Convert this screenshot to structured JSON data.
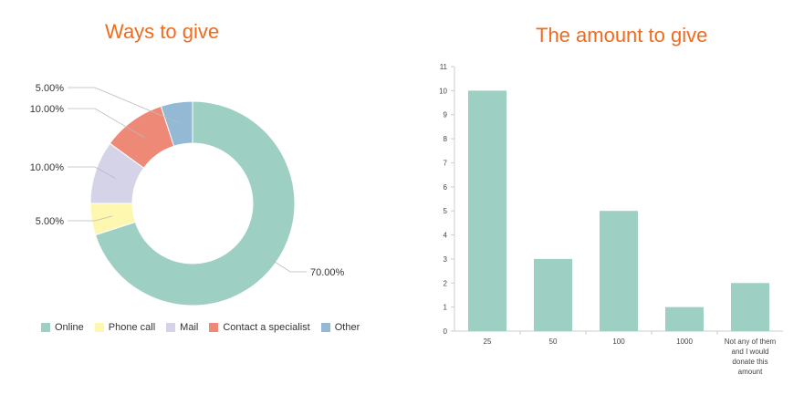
{
  "chart_data": [
    {
      "type": "pie",
      "title": "Ways to give",
      "donut": true,
      "legend_position": "bottom",
      "series": [
        {
          "name": "Online",
          "value": 70,
          "label": "70.00%",
          "color": "#9ecfc3"
        },
        {
          "name": "Phone call",
          "value": 5,
          "label": "5.00%",
          "color": "#fdf7b0"
        },
        {
          "name": "Mail",
          "value": 10,
          "label": "10.00%",
          "color": "#d5d3e8"
        },
        {
          "name": "Contact a specialist",
          "value": 10,
          "label": "10.00%",
          "color": "#ee8877"
        },
        {
          "name": "Other",
          "value": 5,
          "label": "5.00%",
          "color": "#93b9d5"
        }
      ]
    },
    {
      "type": "bar",
      "title": "The amount to give",
      "categories": [
        "25",
        "50",
        "100",
        "1000",
        "Not any of them and I would donate this amount"
      ],
      "category_lines": [
        [
          "25"
        ],
        [
          "50"
        ],
        [
          "100"
        ],
        [
          "1000"
        ],
        [
          "Not any of them",
          "and I would",
          "donate this",
          "amount"
        ]
      ],
      "values": [
        10,
        3,
        5,
        1,
        2
      ],
      "ylim": [
        0,
        11
      ],
      "yticks": [
        "0",
        "1",
        "2",
        "3",
        "4",
        "5",
        "6",
        "7",
        "8",
        "9",
        "10",
        "11"
      ],
      "bar_color": "#9ecfc3",
      "grid": false
    }
  ]
}
